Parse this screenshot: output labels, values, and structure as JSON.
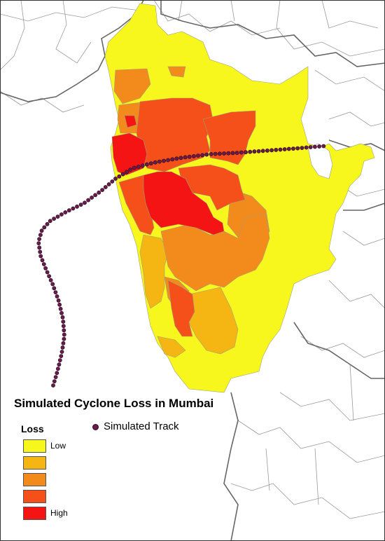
{
  "map": {
    "title": "Simulated Cyclone Loss in Mumbai"
  },
  "legend": {
    "heading": "Loss",
    "track_label": "Simulated Track",
    "classes": [
      {
        "label": "Low",
        "color": "#f7f71d"
      },
      {
        "label": "",
        "color": "#f5b614"
      },
      {
        "label": "",
        "color": "#f38a1c"
      },
      {
        "label": "",
        "color": "#f5501a"
      },
      {
        "label": "High",
        "color": "#f41414"
      }
    ]
  },
  "colors": {
    "land_unaffected": "#ffffff",
    "district_border": "#9a9a9a",
    "state_border": "#666666",
    "sea": "#ffffff",
    "track_point": "#6a1b4d"
  }
}
